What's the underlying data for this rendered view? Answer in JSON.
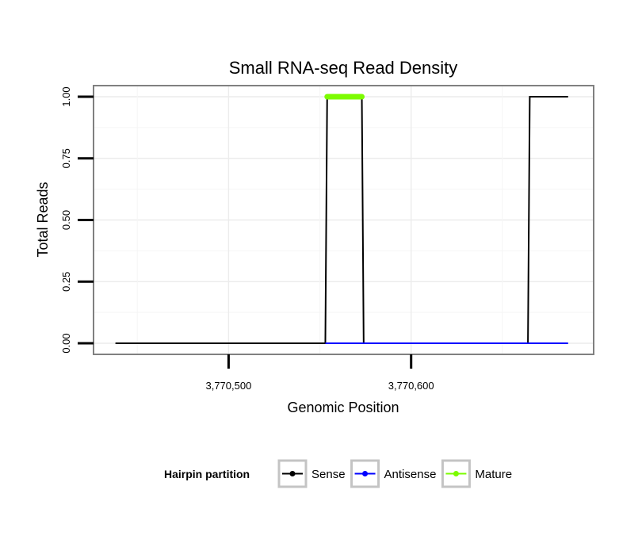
{
  "chart_data": {
    "type": "line",
    "title": "Small RNA-seq Read Density",
    "xlabel": "Genomic Position",
    "ylabel": "Total Reads",
    "xlim": [
      3770426,
      3770700
    ],
    "ylim": [
      -0.045,
      1.045
    ],
    "x_ticks": [
      {
        "value": 3770500,
        "label": "3,770,500"
      },
      {
        "value": 3770600,
        "label": "3,770,600"
      }
    ],
    "y_ticks": [
      {
        "value": 0,
        "label": "0.00"
      },
      {
        "value": 0.25,
        "label": "0.25"
      },
      {
        "value": 0.5,
        "label": "0.50"
      },
      {
        "value": 0.75,
        "label": "0.75"
      },
      {
        "value": 1,
        "label": "1.00"
      }
    ],
    "grid": true,
    "legend": {
      "title": "Hairpin partition",
      "position": "bottom",
      "entries": [
        {
          "label": "Sense",
          "color": "#000000"
        },
        {
          "label": "Antisense",
          "color": "#0000ff"
        },
        {
          "label": "Mature",
          "color": "#7cfc00"
        }
      ]
    },
    "series": [
      {
        "name": "Sense",
        "color": "#000000",
        "x": [
          3770438,
          3770553,
          3770554,
          3770573,
          3770574,
          3770664,
          3770665,
          3770686
        ],
        "y": [
          0,
          0,
          1,
          1,
          0,
          0,
          1,
          1
        ]
      },
      {
        "name": "Antisense",
        "color": "#0000ff",
        "x": [
          3770553,
          3770574,
          3770664,
          3770686
        ],
        "y": [
          0,
          0,
          0,
          0
        ]
      },
      {
        "name": "Mature",
        "color": "#7cfc00",
        "x": [
          3770554,
          3770573
        ],
        "y": [
          1,
          1
        ]
      }
    ]
  }
}
